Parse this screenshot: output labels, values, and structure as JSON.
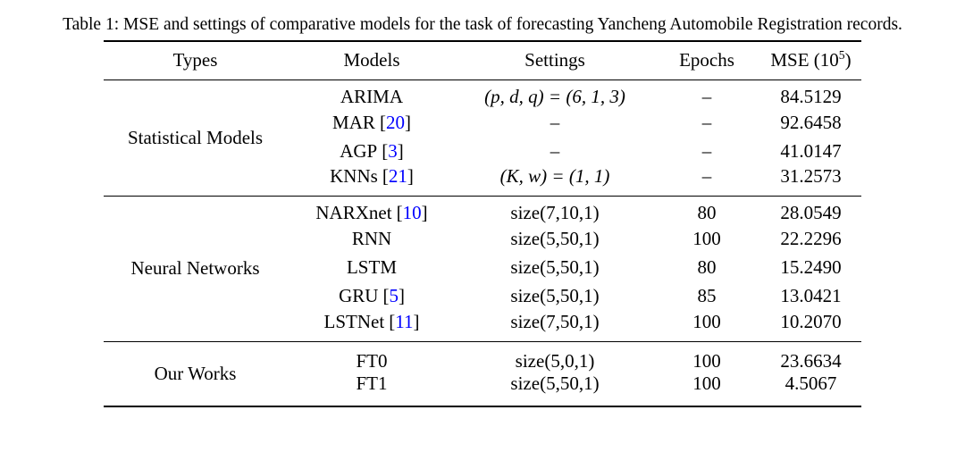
{
  "caption": "Table 1: MSE and settings of comparative models for the task of forecasting Yancheng Automobile Registration records.",
  "colors": {
    "text": "#000000",
    "citation": "#0000FF"
  },
  "table": {
    "headers": {
      "types": "Types",
      "models": "Models",
      "settings": "Settings",
      "epochs": "Epochs",
      "mse_prefix": "MSE (10",
      "mse_sup": "5",
      "mse_close": ")"
    },
    "groups": [
      {
        "type_label": "Statistical Models",
        "rows": [
          {
            "model": "ARIMA",
            "settings": "(p, d, q) = (6, 1, 3)",
            "epochs": "–",
            "mse": "84.5129"
          },
          {
            "model": "MAR",
            "cite_open": "[",
            "cite": "20",
            "cite_close": "]",
            "settings": "–",
            "epochs": "–",
            "mse": "92.6458"
          },
          {
            "model": "AGP",
            "cite_open": "[",
            "cite": "3",
            "cite_close": "]",
            "settings": "–",
            "epochs": "–",
            "mse": "41.0147"
          },
          {
            "model": "KNNs",
            "cite_open": "[",
            "cite": "21",
            "cite_close": "]",
            "settings": "(K, w) = (1, 1)",
            "epochs": "–",
            "mse": "31.2573"
          }
        ]
      },
      {
        "type_label": "Neural Networks",
        "rows": [
          {
            "model": "NARXnet",
            "cite_open": "[",
            "cite": "10",
            "cite_close": "]",
            "settings": "size(7,10,1)",
            "epochs": "80",
            "mse": "28.0549"
          },
          {
            "model": "RNN",
            "settings": "size(5,50,1)",
            "epochs": "100",
            "mse": "22.2296"
          },
          {
            "model": "LSTM",
            "settings": "size(5,50,1)",
            "epochs": "80",
            "mse": "15.2490"
          },
          {
            "model": "GRU",
            "cite_open": "[",
            "cite": "5",
            "cite_close": "]",
            "settings": "size(5,50,1)",
            "epochs": "85",
            "mse": "13.0421"
          },
          {
            "model": "LSTNet",
            "cite_open": "[",
            "cite": "11",
            "cite_close": "]",
            "settings": "size(7,50,1)",
            "epochs": "100",
            "mse": "10.2070"
          }
        ]
      },
      {
        "type_label": "Our Works",
        "rows": [
          {
            "model": "FT0",
            "settings": "size(5,0,1)",
            "epochs": "100",
            "mse": "23.6634"
          },
          {
            "model": "FT1",
            "settings": "size(5,50,1)",
            "epochs": "100",
            "mse": "4.5067"
          }
        ]
      }
    ]
  }
}
